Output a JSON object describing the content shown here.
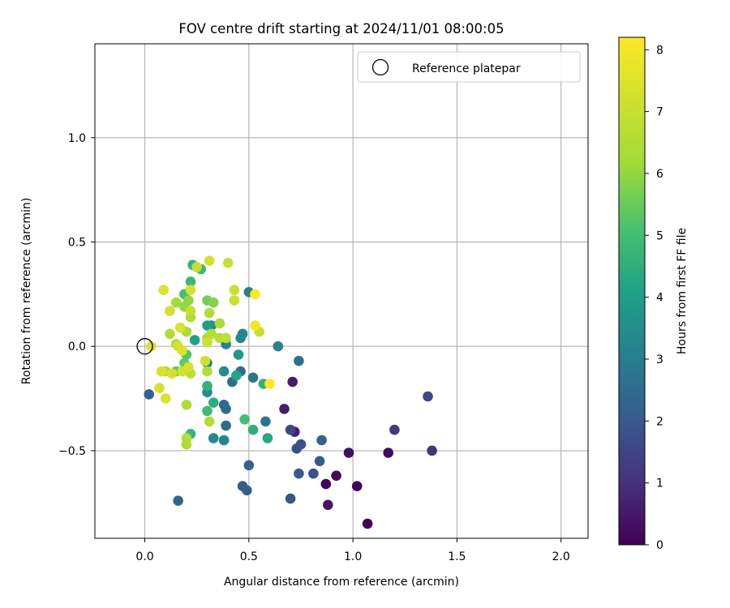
{
  "chart_data": {
    "type": "scatter",
    "title": "FOV centre drift starting at 2024/11/01 08:00:05",
    "xlabel": "Angular distance from reference (arcmin)",
    "ylabel": "Rotation from reference (arcmin)",
    "xlim": [
      -0.24,
      2.13
    ],
    "ylim": [
      -0.92,
      1.45
    ],
    "xticks": [
      0.0,
      0.5,
      1.0,
      1.5,
      2.0
    ],
    "xtick_labels": [
      "0.0",
      "0.5",
      "1.0",
      "1.5",
      "2.0"
    ],
    "yticks": [
      -0.5,
      0.0,
      0.5,
      1.0
    ],
    "ytick_labels": [
      "−0.5",
      "0.0",
      "0.5",
      "1.0"
    ],
    "grid": true,
    "legend": {
      "position": "top-right",
      "entries": [
        {
          "label": "Reference platepar",
          "marker": "open-circle"
        }
      ]
    },
    "reference_point": {
      "x": 0.0,
      "y": 0.0
    },
    "colorbar": {
      "label": "Hours from first FF file",
      "colormap": "viridis",
      "range": [
        0,
        8.2
      ],
      "ticks": [
        0,
        1,
        2,
        3,
        4,
        5,
        6,
        7,
        8
      ],
      "tick_labels": [
        "0",
        "1",
        "2",
        "3",
        "4",
        "5",
        "6",
        "7",
        "8"
      ]
    },
    "points": [
      {
        "x": 1.07,
        "y": -0.85,
        "c": 0.05
      },
      {
        "x": 0.87,
        "y": -0.66,
        "c": 0.1
      },
      {
        "x": 0.92,
        "y": -0.62,
        "c": 0.2
      },
      {
        "x": 1.02,
        "y": -0.67,
        "c": 0.15
      },
      {
        "x": 0.88,
        "y": -0.76,
        "c": 0.4
      },
      {
        "x": 0.98,
        "y": -0.51,
        "c": 0.3
      },
      {
        "x": 1.17,
        "y": -0.51,
        "c": 0.25
      },
      {
        "x": 0.71,
        "y": -0.17,
        "c": 0.6
      },
      {
        "x": 0.67,
        "y": -0.3,
        "c": 0.6
      },
      {
        "x": 0.72,
        "y": -0.41,
        "c": 0.7
      },
      {
        "x": 1.38,
        "y": -0.5,
        "c": 1.0
      },
      {
        "x": 1.2,
        "y": -0.4,
        "c": 1.2
      },
      {
        "x": 1.36,
        "y": -0.24,
        "c": 1.6
      },
      {
        "x": 0.7,
        "y": -0.4,
        "c": 1.5
      },
      {
        "x": 0.73,
        "y": -0.49,
        "c": 1.7
      },
      {
        "x": 0.75,
        "y": -0.47,
        "c": 1.8
      },
      {
        "x": 0.7,
        "y": -0.73,
        "c": 1.9
      },
      {
        "x": 0.74,
        "y": -0.61,
        "c": 2.0
      },
      {
        "x": 0.81,
        "y": -0.61,
        "c": 1.8
      },
      {
        "x": 0.84,
        "y": -0.55,
        "c": 2.0
      },
      {
        "x": 0.85,
        "y": -0.45,
        "c": 2.2
      },
      {
        "x": 0.5,
        "y": -0.57,
        "c": 2.2
      },
      {
        "x": 0.47,
        "y": -0.67,
        "c": 2.0
      },
      {
        "x": 0.49,
        "y": -0.69,
        "c": 2.1
      },
      {
        "x": 0.16,
        "y": -0.74,
        "c": 2.3
      },
      {
        "x": 0.02,
        "y": -0.23,
        "c": 2.2
      },
      {
        "x": 0.74,
        "y": -0.07,
        "c": 2.6
      },
      {
        "x": 0.39,
        "y": -0.38,
        "c": 2.4
      },
      {
        "x": 0.38,
        "y": -0.28,
        "c": 2.4
      },
      {
        "x": 0.39,
        "y": -0.3,
        "c": 2.5
      },
      {
        "x": 0.42,
        "y": -0.17,
        "c": 2.5
      },
      {
        "x": 0.46,
        "y": -0.12,
        "c": 2.7
      },
      {
        "x": 0.52,
        "y": -0.15,
        "c": 2.8
      },
      {
        "x": 0.58,
        "y": -0.36,
        "c": 2.8
      },
      {
        "x": 0.64,
        "y": 0.0,
        "c": 3.2
      },
      {
        "x": 0.5,
        "y": 0.26,
        "c": 3.2
      },
      {
        "x": 0.46,
        "y": 0.04,
        "c": 3.3
      },
      {
        "x": 0.47,
        "y": 0.06,
        "c": 3.3
      },
      {
        "x": 0.39,
        "y": 0.01,
        "c": 3.2
      },
      {
        "x": 0.33,
        "y": -0.44,
        "c": 3.4
      },
      {
        "x": 0.38,
        "y": -0.45,
        "c": 3.3
      },
      {
        "x": 0.38,
        "y": -0.12,
        "c": 3.5
      },
      {
        "x": 0.3,
        "y": -0.22,
        "c": 3.4
      },
      {
        "x": 0.3,
        "y": -0.08,
        "c": 3.3
      },
      {
        "x": 0.32,
        "y": 0.1,
        "c": 3.6
      },
      {
        "x": 0.3,
        "y": 0.1,
        "c": 4.0
      },
      {
        "x": 0.24,
        "y": 0.03,
        "c": 4.0
      },
      {
        "x": 0.45,
        "y": -0.04,
        "c": 3.8
      },
      {
        "x": 0.44,
        "y": -0.14,
        "c": 4.2
      },
      {
        "x": 0.52,
        "y": -0.4,
        "c": 4.5
      },
      {
        "x": 0.59,
        "y": -0.44,
        "c": 4.3
      },
      {
        "x": 0.57,
        "y": -0.18,
        "c": 4.6
      },
      {
        "x": 0.33,
        "y": -0.27,
        "c": 4.5
      },
      {
        "x": 0.3,
        "y": -0.31,
        "c": 4.9
      },
      {
        "x": 0.22,
        "y": -0.42,
        "c": 4.7
      },
      {
        "x": 0.3,
        "y": -0.19,
        "c": 4.6
      },
      {
        "x": 0.48,
        "y": -0.35,
        "c": 5.0
      },
      {
        "x": 0.22,
        "y": 0.31,
        "c": 4.8
      },
      {
        "x": 0.27,
        "y": 0.37,
        "c": 4.8
      },
      {
        "x": 0.23,
        "y": 0.39,
        "c": 4.6
      },
      {
        "x": 0.19,
        "y": 0.25,
        "c": 5.0
      },
      {
        "x": 0.2,
        "y": -0.04,
        "c": 5.2
      },
      {
        "x": 0.19,
        "y": -0.08,
        "c": 5.4
      },
      {
        "x": 0.15,
        "y": -0.12,
        "c": 5.5
      },
      {
        "x": 0.3,
        "y": 0.22,
        "c": 5.6
      },
      {
        "x": 0.33,
        "y": 0.21,
        "c": 5.8
      },
      {
        "x": 0.21,
        "y": 0.22,
        "c": 6.0
      },
      {
        "x": 0.19,
        "y": 0.19,
        "c": 6.0
      },
      {
        "x": 0.15,
        "y": 0.21,
        "c": 6.2
      },
      {
        "x": 0.22,
        "y": 0.14,
        "c": 6.5
      },
      {
        "x": 0.12,
        "y": 0.06,
        "c": 6.5
      },
      {
        "x": 0.2,
        "y": 0.07,
        "c": 6.4
      },
      {
        "x": 0.15,
        "y": 0.01,
        "c": 6.6
      },
      {
        "x": 0.1,
        "y": -0.12,
        "c": 6.5
      },
      {
        "x": 0.31,
        "y": 0.16,
        "c": 6.5
      },
      {
        "x": 0.3,
        "y": 0.04,
        "c": 6.4
      },
      {
        "x": 0.32,
        "y": 0.06,
        "c": 6.6
      },
      {
        "x": 0.36,
        "y": 0.11,
        "c": 6.4
      },
      {
        "x": 0.36,
        "y": 0.04,
        "c": 6.7
      },
      {
        "x": 0.39,
        "y": 0.04,
        "c": 6.8
      },
      {
        "x": 0.3,
        "y": -0.12,
        "c": 6.5
      },
      {
        "x": 0.31,
        "y": -0.36,
        "c": 6.6
      },
      {
        "x": 0.2,
        "y": -0.28,
        "c": 6.5
      },
      {
        "x": 0.2,
        "y": -0.44,
        "c": 6.6
      },
      {
        "x": 0.2,
        "y": -0.47,
        "c": 6.4
      },
      {
        "x": 0.22,
        "y": -0.13,
        "c": 6.8
      },
      {
        "x": 0.25,
        "y": 0.38,
        "c": 7.0
      },
      {
        "x": 0.31,
        "y": 0.41,
        "c": 7.2
      },
      {
        "x": 0.4,
        "y": 0.4,
        "c": 7.0
      },
      {
        "x": 0.43,
        "y": 0.27,
        "c": 7.0
      },
      {
        "x": 0.43,
        "y": 0.22,
        "c": 7.1
      },
      {
        "x": 0.55,
        "y": 0.07,
        "c": 7.0
      },
      {
        "x": 0.22,
        "y": 0.27,
        "c": 7.3
      },
      {
        "x": 0.09,
        "y": 0.27,
        "c": 7.4
      },
      {
        "x": 0.12,
        "y": 0.17,
        "c": 7.3
      },
      {
        "x": 0.22,
        "y": 0.17,
        "c": 7.0
      },
      {
        "x": 0.3,
        "y": 0.02,
        "c": 7.1
      },
      {
        "x": 0.29,
        "y": -0.07,
        "c": 7.2
      },
      {
        "x": 0.17,
        "y": 0.09,
        "c": 7.4
      },
      {
        "x": 0.16,
        "y": 0.0,
        "c": 7.3
      },
      {
        "x": 0.18,
        "y": -0.02,
        "c": 7.5
      },
      {
        "x": 0.21,
        "y": -0.1,
        "c": 7.4
      },
      {
        "x": 0.18,
        "y": -0.12,
        "c": 7.2
      },
      {
        "x": 0.13,
        "y": -0.13,
        "c": 7.3
      },
      {
        "x": 0.08,
        "y": -0.12,
        "c": 7.4
      },
      {
        "x": 0.07,
        "y": -0.2,
        "c": 7.3
      },
      {
        "x": 0.1,
        "y": -0.25,
        "c": 7.4
      },
      {
        "x": 0.03,
        "y": 0.0,
        "c": 7.5
      },
      {
        "x": 0.53,
        "y": 0.1,
        "c": 8.0
      },
      {
        "x": 0.53,
        "y": 0.25,
        "c": 8.2
      },
      {
        "x": 0.6,
        "y": -0.18,
        "c": 8.2
      }
    ]
  }
}
